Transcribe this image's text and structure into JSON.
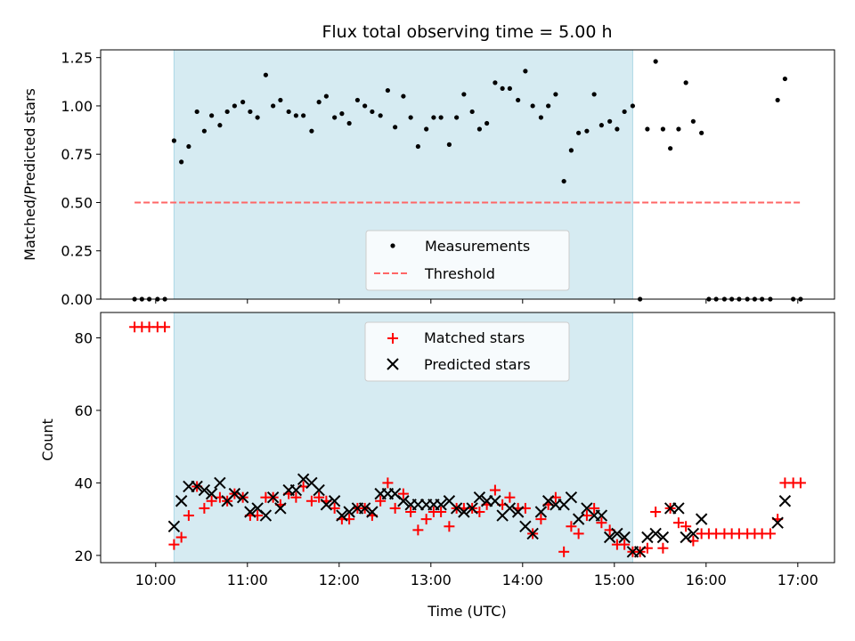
{
  "title": "Flux total observing time = 5.00 h",
  "colors": {
    "highlight": "#add8e6",
    "measurement": "#000000",
    "threshold": "#ff6666",
    "matched": "#ff0000",
    "predicted": "#000000"
  },
  "chart_data": [
    {
      "type": "scatter",
      "ylabel": "Matched/Predicted stars",
      "xlim": [
        9.4,
        17.4
      ],
      "ylim": [
        0,
        1.29
      ],
      "yticks": [
        0,
        0.25,
        0.5,
        0.75,
        1.0,
        1.25
      ],
      "ytick_labels": [
        "0.00",
        "0.25",
        "0.50",
        "0.75",
        "1.00",
        "1.25"
      ],
      "xticks": [
        10,
        11,
        12,
        13,
        14,
        15,
        16,
        17
      ],
      "highlight_span": [
        10.2,
        15.2
      ],
      "legend_placement": "lower-center",
      "series": [
        {
          "name": "Measurements",
          "marker": "dot",
          "x": [
            9.77,
            9.85,
            9.93,
            10.02,
            10.1,
            10.2,
            10.28,
            10.36,
            10.45,
            10.53,
            10.61,
            10.7,
            10.78,
            10.86,
            10.95,
            11.03,
            11.11,
            11.2,
            11.28,
            11.36,
            11.45,
            11.53,
            11.61,
            11.7,
            11.78,
            11.86,
            11.95,
            12.03,
            12.11,
            12.2,
            12.28,
            12.36,
            12.45,
            12.53,
            12.61,
            12.7,
            12.78,
            12.86,
            12.95,
            13.03,
            13.11,
            13.2,
            13.28,
            13.36,
            13.45,
            13.53,
            13.61,
            13.7,
            13.78,
            13.86,
            13.95,
            14.03,
            14.11,
            14.2,
            14.28,
            14.36,
            14.45,
            14.53,
            14.61,
            14.7,
            14.78,
            14.86,
            14.95,
            15.03,
            15.11,
            15.2,
            15.28,
            15.36,
            15.45,
            15.53,
            15.61,
            15.7,
            15.78,
            15.86,
            15.95,
            16.03,
            16.11,
            16.2,
            16.28,
            16.36,
            16.45,
            16.53,
            16.61,
            16.7,
            16.78,
            16.86,
            16.95,
            17.03
          ],
          "y": [
            0,
            0,
            0,
            0,
            0,
            0.82,
            0.71,
            0.79,
            0.97,
            0.87,
            0.95,
            0.9,
            0.97,
            1.0,
            1.02,
            0.97,
            0.94,
            1.16,
            1.0,
            1.03,
            0.97,
            0.95,
            0.95,
            0.87,
            1.02,
            1.05,
            0.94,
            0.96,
            0.91,
            1.03,
            1.0,
            0.97,
            0.95,
            1.08,
            0.89,
            1.05,
            0.94,
            0.79,
            0.88,
            0.94,
            0.94,
            0.8,
            0.94,
            1.06,
            0.97,
            0.88,
            0.91,
            1.12,
            1.09,
            1.09,
            1.03,
            1.18,
            1.0,
            0.94,
            1.0,
            1.06,
            0.61,
            0.77,
            0.86,
            0.87,
            1.06,
            0.9,
            0.92,
            0.88,
            0.97,
            1.0,
            0,
            0.88,
            1.23,
            0.88,
            0.78,
            0.88,
            1.12,
            0.92,
            0.86,
            0,
            0,
            0,
            0,
            0,
            0,
            0,
            0,
            0,
            1.03,
            1.14,
            0,
            0
          ]
        },
        {
          "name": "Threshold",
          "marker": "dashed-line",
          "x": [
            9.77,
            17.03
          ],
          "y": [
            0.5,
            0.5
          ]
        }
      ]
    },
    {
      "type": "scatter",
      "xlabel": "Time (UTC)",
      "ylabel": "Count",
      "xlim": [
        9.4,
        17.4
      ],
      "ylim": [
        18,
        87
      ],
      "yticks": [
        20,
        40,
        60,
        80
      ],
      "ytick_labels": [
        "20",
        "40",
        "60",
        "80"
      ],
      "xticks": [
        10,
        11,
        12,
        13,
        14,
        15,
        16,
        17
      ],
      "xtick_labels": [
        "10:00",
        "11:00",
        "12:00",
        "13:00",
        "14:00",
        "15:00",
        "16:00",
        "17:00"
      ],
      "highlight_span": [
        10.2,
        15.2
      ],
      "legend_placement": "upper-center",
      "series": [
        {
          "name": "Matched stars",
          "marker": "plus",
          "x": [
            9.77,
            9.85,
            9.93,
            10.02,
            10.1,
            10.2,
            10.28,
            10.36,
            10.45,
            10.53,
            10.61,
            10.7,
            10.78,
            10.86,
            10.95,
            11.03,
            11.11,
            11.2,
            11.28,
            11.36,
            11.45,
            11.53,
            11.61,
            11.7,
            11.78,
            11.86,
            11.95,
            12.03,
            12.11,
            12.2,
            12.28,
            12.36,
            12.45,
            12.53,
            12.61,
            12.7,
            12.78,
            12.86,
            12.95,
            13.03,
            13.11,
            13.2,
            13.28,
            13.36,
            13.45,
            13.53,
            13.61,
            13.7,
            13.78,
            13.86,
            13.95,
            14.03,
            14.11,
            14.2,
            14.28,
            14.36,
            14.45,
            14.53,
            14.61,
            14.7,
            14.78,
            14.86,
            14.95,
            15.03,
            15.11,
            15.2,
            15.28,
            15.36,
            15.45,
            15.53,
            15.61,
            15.7,
            15.78,
            15.86,
            15.95,
            16.03,
            16.11,
            16.2,
            16.28,
            16.36,
            16.45,
            16.53,
            16.61,
            16.7,
            16.78,
            16.86,
            16.95,
            17.03
          ],
          "y": [
            83,
            83,
            83,
            83,
            83,
            23,
            25,
            31,
            39,
            33,
            35,
            36,
            35,
            37,
            36,
            31,
            31,
            36,
            36,
            34,
            37,
            36,
            39,
            35,
            36,
            35,
            33,
            30,
            30,
            33,
            33,
            31,
            35,
            40,
            33,
            37,
            32,
            27,
            30,
            32,
            32,
            28,
            33,
            33,
            33,
            32,
            34,
            38,
            34,
            36,
            33,
            33,
            26,
            30,
            34,
            36,
            21,
            28,
            26,
            31,
            33,
            29,
            27,
            23,
            23,
            21,
            21,
            22,
            32,
            22,
            33,
            29,
            28,
            24,
            26,
            26,
            26,
            26,
            26,
            26,
            26,
            26,
            26,
            26,
            30,
            40,
            40,
            40
          ]
        },
        {
          "name": "Predicted stars",
          "marker": "x",
          "x": [
            10.2,
            10.28,
            10.36,
            10.45,
            10.53,
            10.61,
            10.7,
            10.78,
            10.86,
            10.95,
            11.03,
            11.11,
            11.2,
            11.28,
            11.36,
            11.45,
            11.53,
            11.61,
            11.7,
            11.78,
            11.86,
            11.95,
            12.03,
            12.11,
            12.2,
            12.28,
            12.36,
            12.45,
            12.53,
            12.61,
            12.7,
            12.78,
            12.86,
            12.95,
            13.03,
            13.11,
            13.2,
            13.28,
            13.36,
            13.45,
            13.53,
            13.61,
            13.7,
            13.78,
            13.86,
            13.95,
            14.03,
            14.11,
            14.2,
            14.28,
            14.36,
            14.45,
            14.53,
            14.61,
            14.7,
            14.78,
            14.86,
            14.95,
            15.03,
            15.11,
            15.2,
            15.28,
            15.36,
            15.45,
            15.53,
            15.61,
            15.7,
            15.78,
            15.86,
            15.95,
            16.78,
            16.86
          ],
          "y": [
            28,
            35,
            39,
            39,
            38,
            37,
            40,
            35,
            37,
            36,
            32,
            33,
            31,
            36,
            33,
            38,
            38,
            41,
            40,
            38,
            34,
            35,
            31,
            32,
            33,
            33,
            32,
            37,
            37,
            37,
            35,
            34,
            34,
            34,
            34,
            34,
            35,
            33,
            32,
            33,
            36,
            35,
            35,
            31,
            33,
            32,
            28,
            26,
            32,
            35,
            34,
            34,
            36,
            30,
            33,
            31,
            31,
            25,
            26,
            25,
            21,
            21,
            25,
            26,
            25,
            33,
            33,
            25,
            26,
            30,
            29,
            35
          ]
        }
      ]
    }
  ]
}
